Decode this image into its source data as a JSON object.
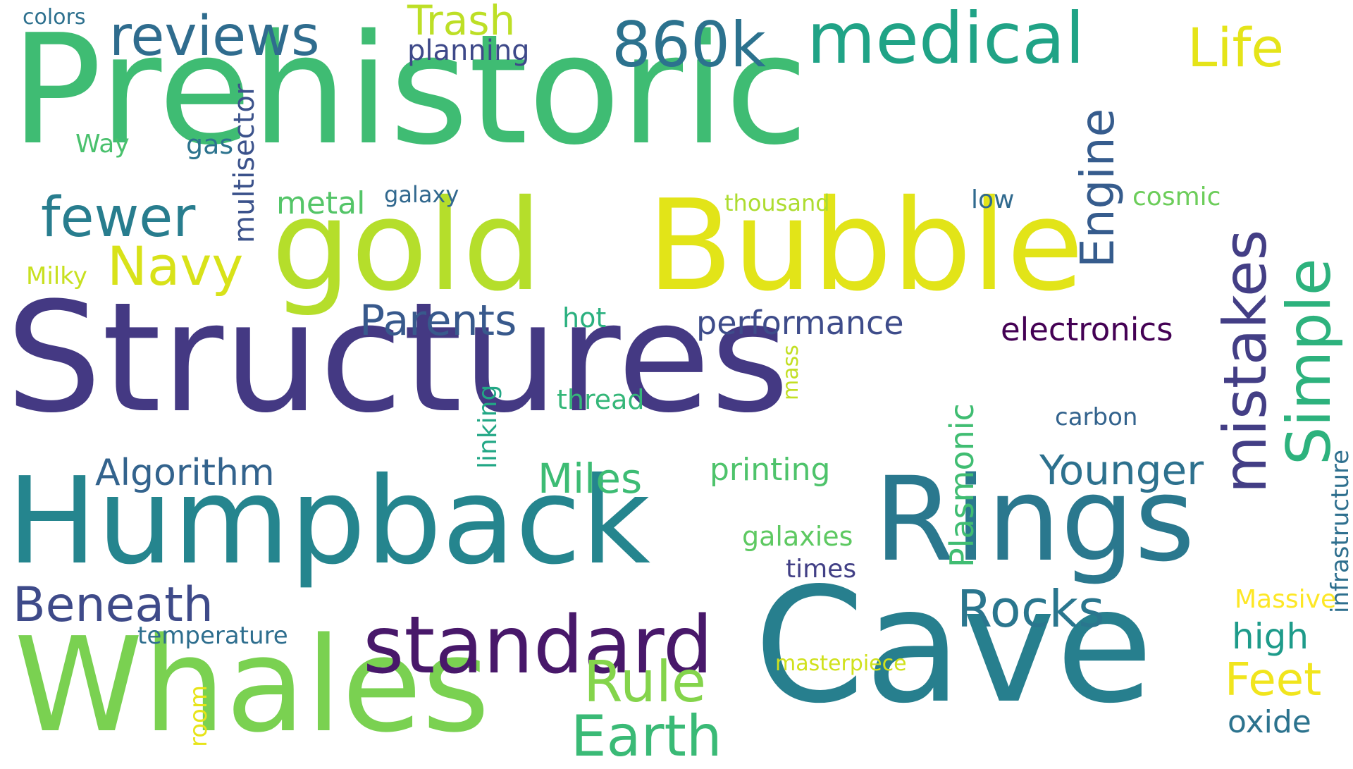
{
  "words": [
    {
      "text": "Prehistoric",
      "color": "#3fbc73"
    },
    {
      "text": "Structures",
      "color": "#443983"
    },
    {
      "text": "Humpback",
      "color": "#25858e"
    },
    {
      "text": "Cave",
      "color": "#277f8e"
    },
    {
      "text": "Whales",
      "color": "#7ad151"
    },
    {
      "text": "gold",
      "color": "#b5de2b"
    },
    {
      "text": "Bubble",
      "color": "#e2e418"
    },
    {
      "text": "Rings",
      "color": "#2a788e"
    },
    {
      "text": "standard",
      "color": "#48186a"
    },
    {
      "text": "medical",
      "color": "#20a386"
    },
    {
      "text": "860k",
      "color": "#2c728e"
    },
    {
      "text": "reviews",
      "color": "#2f6c8e"
    },
    {
      "text": "fewer",
      "color": "#287d8e"
    },
    {
      "text": "Navy",
      "color": "#d8e219"
    },
    {
      "text": "Life",
      "color": "#e5e419"
    },
    {
      "text": "Trash",
      "color": "#bddf26"
    },
    {
      "text": "planning",
      "color": "#3e4989"
    },
    {
      "text": "colors",
      "color": "#2d708e"
    },
    {
      "text": "Way",
      "color": "#4ac16d"
    },
    {
      "text": "gas",
      "color": "#2c738e"
    },
    {
      "text": "multisector",
      "color": "#3b528b"
    },
    {
      "text": "metal",
      "color": "#54c568"
    },
    {
      "text": "galaxy",
      "color": "#31688e"
    },
    {
      "text": "thousand",
      "color": "#addc30"
    },
    {
      "text": "low",
      "color": "#306a8e"
    },
    {
      "text": "Engine",
      "color": "#365c8d"
    },
    {
      "text": "cosmic",
      "color": "#6ccd5a"
    },
    {
      "text": "mistakes",
      "color": "#433e85"
    },
    {
      "text": "Simple",
      "color": "#2db27d"
    },
    {
      "text": "Milky",
      "color": "#c8e020"
    },
    {
      "text": "Parents",
      "color": "#38598c"
    },
    {
      "text": "hot",
      "color": "#2ab07f"
    },
    {
      "text": "performance",
      "color": "#3e4c8a"
    },
    {
      "text": "electronics",
      "color": "#440154"
    },
    {
      "text": "linking",
      "color": "#22a785"
    },
    {
      "text": "mass",
      "color": "#c2df23"
    },
    {
      "text": "thread",
      "color": "#35b779"
    },
    {
      "text": "carbon",
      "color": "#33638d"
    },
    {
      "text": "Plasmonic",
      "color": "#40bd72"
    },
    {
      "text": "infrastructure",
      "color": "#2e6f8e"
    },
    {
      "text": "Algorithm",
      "color": "#33638d"
    },
    {
      "text": "Miles",
      "color": "#3dbc74"
    },
    {
      "text": "printing",
      "color": "#4ec36b"
    },
    {
      "text": "Younger",
      "color": "#2d718e"
    },
    {
      "text": "galaxies",
      "color": "#5ec962"
    },
    {
      "text": "times",
      "color": "#424086"
    },
    {
      "text": "Beneath",
      "color": "#3e4a89"
    },
    {
      "text": "Rocks",
      "color": "#2a768e"
    },
    {
      "text": "Massive",
      "color": "#fde725"
    },
    {
      "text": "high",
      "color": "#1e9b8a"
    },
    {
      "text": "temperature",
      "color": "#2e6e8e"
    },
    {
      "text": "Rule",
      "color": "#84d44b"
    },
    {
      "text": "masterpiece",
      "color": "#d0e11c"
    },
    {
      "text": "Feet",
      "color": "#f1e51d"
    },
    {
      "text": "room",
      "color": "#e7e419"
    },
    {
      "text": "Earth",
      "color": "#3aba76"
    },
    {
      "text": "oxide",
      "color": "#2c738e"
    }
  ]
}
